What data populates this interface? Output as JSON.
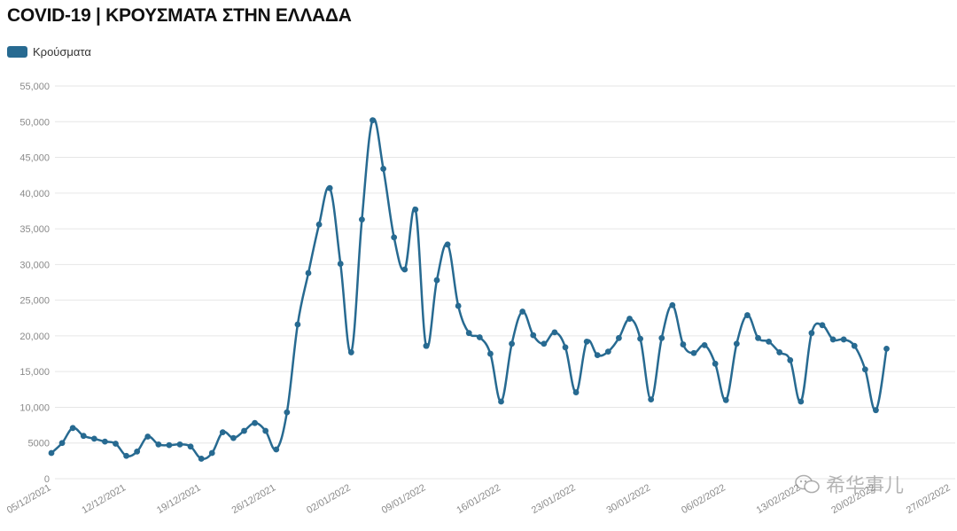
{
  "chart_data": {
    "type": "line",
    "title": "COVID-19 | ΚΡΟΥΣΜΑΤΑ ΣΤΗΝ ΕΛΛΑΔΑ",
    "legend": [
      "Κρούσματα"
    ],
    "legend_position": "top-left",
    "grid": true,
    "ylim": [
      0,
      55000
    ],
    "y_ticks": [
      "0",
      "5000",
      "10,000",
      "15,000",
      "20,000",
      "25,000",
      "30,000",
      "35,000",
      "40,000",
      "45,000",
      "50,000",
      "55,000"
    ],
    "x_ticks": [
      "05/12/2021",
      "12/12/2021",
      "19/12/2021",
      "26/12/2021",
      "02/01/2022",
      "09/01/2022",
      "16/01/2022",
      "23/01/2022",
      "30/01/2022",
      "06/02/2022",
      "13/02/2022",
      "20/02/2022",
      "27/02/2022"
    ],
    "x_start": "05/12/2021",
    "series": [
      {
        "name": "Κρούσματα",
        "color": "#276a91",
        "values": [
          3600,
          5000,
          7100,
          6000,
          5600,
          5200,
          4900,
          3200,
          3800,
          5900,
          4800,
          4700,
          4800,
          4500,
          2800,
          3600,
          6500,
          5700,
          6700,
          7800,
          6700,
          4100,
          9300,
          21600,
          28800,
          35600,
          40700,
          30100,
          17700,
          36300,
          50200,
          43400,
          33800,
          29300,
          37700,
          18600,
          27800,
          32800,
          24200,
          20400,
          19800,
          17500,
          10800,
          18900,
          23400,
          20100,
          18900,
          20500,
          18400,
          12100,
          19200,
          17300,
          17800,
          19700,
          22400,
          19600,
          11100,
          19700,
          24300,
          18800,
          17600,
          18700,
          16100,
          11000,
          18900,
          22900,
          19700,
          19200,
          17700,
          16600,
          10800,
          20400,
          21500,
          19500,
          19500,
          18600,
          15300,
          9600,
          18200
        ]
      }
    ]
  },
  "watermark_text": "希华事儿"
}
